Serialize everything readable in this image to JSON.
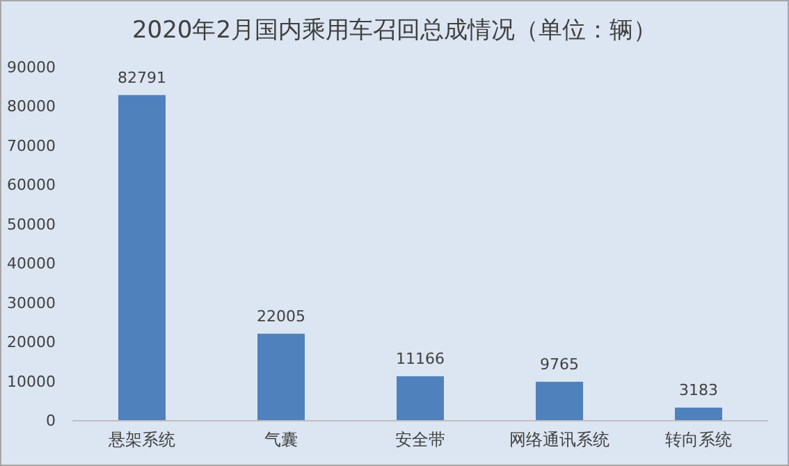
{
  "chart_data": {
    "type": "bar",
    "title": "2020年2月国内乘用车召回总成情况（单位：辆）",
    "categories": [
      "悬架系统",
      "气囊",
      "安全带",
      "网络通讯系统",
      "转向系统"
    ],
    "values": [
      82791,
      22005,
      11166,
      9765,
      3183
    ],
    "color": "#4f81bd",
    "ylim": [
      0,
      90000
    ],
    "yticks": [
      0,
      10000,
      20000,
      30000,
      40000,
      50000,
      60000,
      70000,
      80000,
      90000
    ],
    "data_labels": true,
    "grid": false
  }
}
